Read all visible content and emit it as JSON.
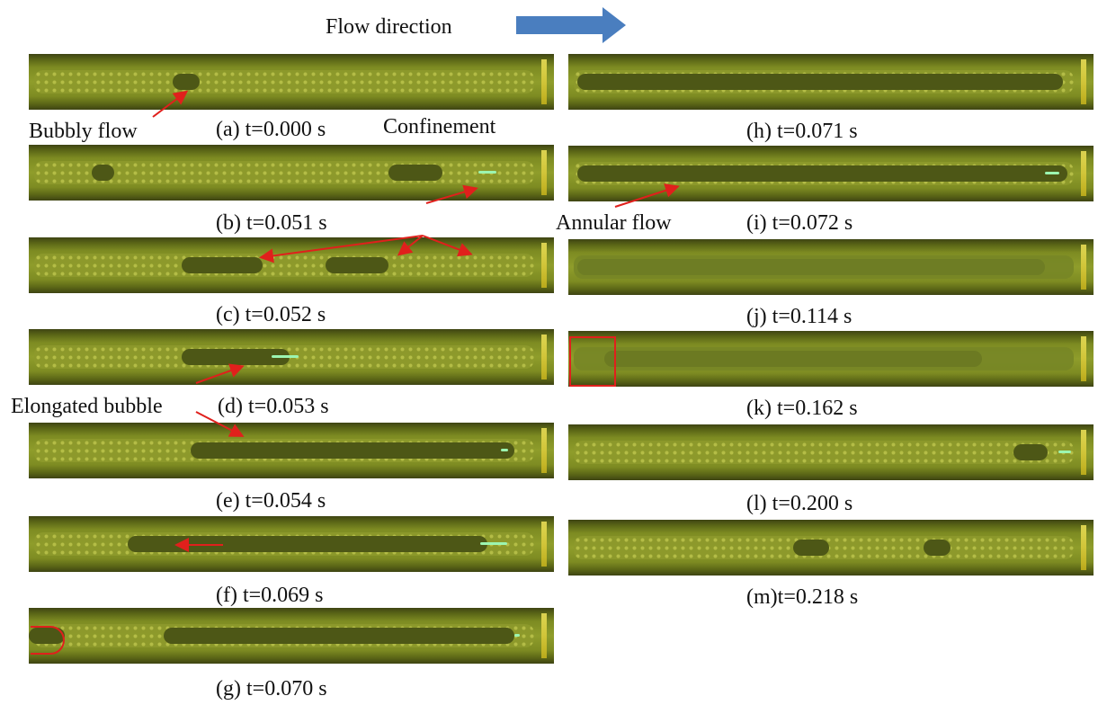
{
  "header": {
    "flow_label": "Flow direction"
  },
  "annotations": {
    "bubbly": "Bubbly flow",
    "confinement": "Confinement",
    "annular": "Annular flow",
    "elongated": "Elongated bubble"
  },
  "captions": {
    "a": "(a)  t=0.000 s",
    "b": "(b)  t=0.051 s",
    "c": "(c)  t=0.052 s",
    "d": "(d)  t=0.053 s",
    "e": "(e)  t=0.054 s",
    "f": "(f)  t=0.069 s",
    "g": "(g)  t=0.070 s",
    "h": "(h)  t=0.071 s",
    "i": "(i)  t=0.072 s",
    "j": "(j)  t=0.114 s",
    "k": "(k)  t=0.162 s",
    "l": "(l)  t=0.200 s",
    "m": "(m)t=0.218 s"
  },
  "colors": {
    "arrow_blue": "#4a7ebf",
    "annotation_red": "#e0201c",
    "channel_green": "#7d8b22"
  }
}
